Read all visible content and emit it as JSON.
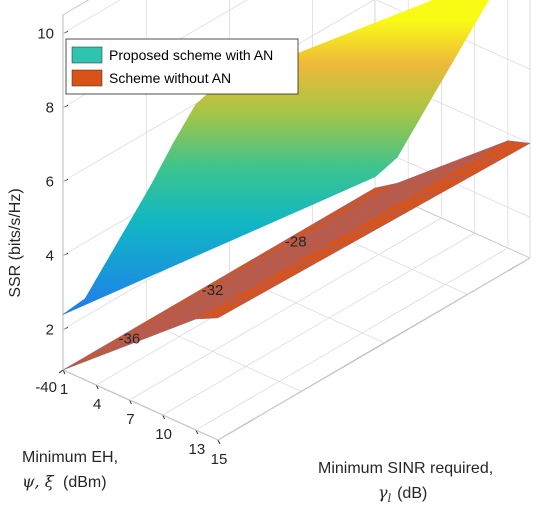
{
  "chart_data": {
    "type": "surface",
    "xlabel_line1": "Minimum EH,",
    "xlabel_symbols": "ψ, ξ",
    "xlabel_unit": "(dBm)",
    "ylabel_line1": "Minimum SINR required,",
    "ylabel_symbol": "γ",
    "ylabel_subscript": "l",
    "ylabel_unit": "(dB)",
    "zlabel": "SSR (bits/s/Hz)",
    "x_ticks": [
      "-40",
      "-36",
      "-32",
      "-28"
    ],
    "y_ticks": [
      "1",
      "4",
      "7",
      "10",
      "13",
      "15"
    ],
    "z_ticks": [
      "2",
      "4",
      "6",
      "8",
      "10"
    ],
    "xlim": [
      -40,
      -25
    ],
    "ylim": [
      1,
      15
    ],
    "zlim": [
      0.9,
      10.5
    ],
    "grid": true,
    "legend_position": "top-left",
    "series": [
      {
        "name": "Proposed scheme with AN",
        "color": "#2ec4b0",
        "colormap": "parula",
        "ssr_at_min_eh_vs_sinr": [
          2.4,
          3.1,
          4.4,
          5.7,
          7.0,
          8.4,
          9.7,
          10.5
        ],
        "ssr_at_max_eh_vs_sinr": [
          1.2,
          2.0,
          3.3,
          4.6,
          5.9,
          7.2,
          8.4,
          8.9
        ]
      },
      {
        "name": "Scheme without AN",
        "color": "#d95319",
        "ssr_at_min_eh_vs_sinr": [
          0.9,
          1.4,
          1.9,
          2.4,
          2.9,
          3.4,
          3.9,
          4.2
        ],
        "ssr_at_max_eh_vs_sinr": [
          0.9,
          1.3,
          1.8,
          2.3,
          2.8,
          3.3,
          3.8,
          4.0
        ]
      }
    ]
  }
}
